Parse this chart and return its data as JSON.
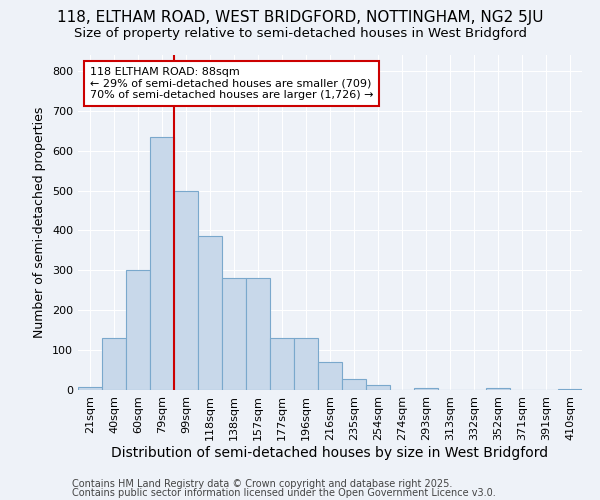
{
  "title1": "118, ELTHAM ROAD, WEST BRIDGFORD, NOTTINGHAM, NG2 5JU",
  "title2": "Size of property relative to semi-detached houses in West Bridgford",
  "xlabel": "Distribution of semi-detached houses by size in West Bridgford",
  "ylabel": "Number of semi-detached properties",
  "categories": [
    "21sqm",
    "40sqm",
    "60sqm",
    "79sqm",
    "99sqm",
    "118sqm",
    "138sqm",
    "157sqm",
    "177sqm",
    "196sqm",
    "216sqm",
    "235sqm",
    "254sqm",
    "274sqm",
    "293sqm",
    "313sqm",
    "332sqm",
    "352sqm",
    "371sqm",
    "391sqm",
    "410sqm"
  ],
  "values": [
    8,
    130,
    300,
    635,
    500,
    385,
    280,
    280,
    130,
    130,
    70,
    28,
    12,
    0,
    4,
    0,
    0,
    4,
    0,
    0,
    2
  ],
  "bar_color": "#c8d8ea",
  "bar_edge_color": "#7aa8cc",
  "vline_color": "#cc0000",
  "vline_x": 3.5,
  "annotation_line1": "118 ELTHAM ROAD: 88sqm",
  "annotation_line2": "← 29% of semi-detached houses are smaller (709)",
  "annotation_line3": "70% of semi-detached houses are larger (1,726) →",
  "annotation_box_facecolor": "#ffffff",
  "annotation_box_edgecolor": "#cc0000",
  "ylim": [
    0,
    840
  ],
  "yticks": [
    0,
    100,
    200,
    300,
    400,
    500,
    600,
    700,
    800
  ],
  "footnote1": "Contains HM Land Registry data © Crown copyright and database right 2025.",
  "footnote2": "Contains public sector information licensed under the Open Government Licence v3.0.",
  "bg_color": "#eef2f8",
  "plot_bg_color": "#eef2f8",
  "grid_color": "#ffffff",
  "title1_fontsize": 11,
  "title2_fontsize": 9.5,
  "xlabel_fontsize": 10,
  "ylabel_fontsize": 9,
  "tick_fontsize": 8,
  "annotation_fontsize": 8,
  "footnote_fontsize": 7
}
